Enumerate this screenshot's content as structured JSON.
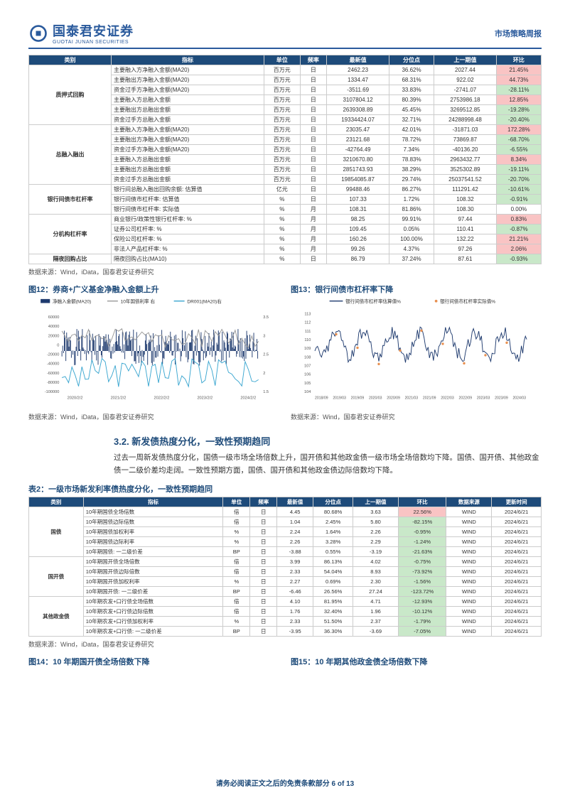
{
  "header": {
    "logo_cn": "国泰君安证券",
    "logo_en": "GUOTAI JUNAN SECURITIES",
    "report": "市场策略周报"
  },
  "table1": {
    "cols": [
      "类别",
      "指标",
      "单位",
      "频率",
      "最新值",
      "分位点",
      "上一期值",
      "环比"
    ],
    "groups": [
      {
        "name": "质押式回购",
        "rows": [
          [
            "主要融入方净融入金额(MA20)",
            "百万元",
            "日",
            "2462.23",
            "36.62%",
            "2027.44",
            "21.45%",
            "pos"
          ],
          [
            "主要融出方净融入金额(MA20)",
            "百万元",
            "日",
            "1334.47",
            "68.31%",
            "922.02",
            "44.73%",
            "pos"
          ],
          [
            "资金过手方净融入金额(MA20)",
            "百万元",
            "日",
            "-3511.69",
            "33.83%",
            "-2741.07",
            "-28.11%",
            "neg"
          ],
          [
            "主要融入方总融入金额",
            "百万元",
            "日",
            "3107804.12",
            "80.39%",
            "2753986.18",
            "12.85%",
            "pos"
          ],
          [
            "主要融出方总融出金额",
            "百万元",
            "日",
            "2639308.89",
            "45.45%",
            "3269512.85",
            "-19.28%",
            "neg"
          ],
          [
            "资金过手方总融入金额",
            "百万元",
            "日",
            "19334424.07",
            "32.71%",
            "24288998.48",
            "-20.40%",
            "neg"
          ]
        ]
      },
      {
        "name": "总融入融出",
        "rows": [
          [
            "主要融入方净融入金额(MA20)",
            "百万元",
            "日",
            "23035.47",
            "42.01%",
            "-31871.03",
            "172.28%",
            "pos"
          ],
          [
            "主要融出方净融入金额(MA20)",
            "百万元",
            "日",
            "23121.68",
            "78.72%",
            "73869.87",
            "-68.70%",
            "neg"
          ],
          [
            "资金过手方净融入金额(MA20)",
            "百万元",
            "日",
            "-42764.49",
            "7.34%",
            "-40136.20",
            "-6.55%",
            "neg"
          ],
          [
            "主要融入方总融出金额",
            "百万元",
            "日",
            "3210670.80",
            "78.83%",
            "2963432.77",
            "8.34%",
            "pos"
          ],
          [
            "主要融出方总融出金额",
            "百万元",
            "日",
            "2851743.93",
            "38.29%",
            "3525302.89",
            "-19.11%",
            "neg"
          ],
          [
            "资金过手方总融出金额",
            "百万元",
            "日",
            "19854085.87",
            "29.74%",
            "25037541.52",
            "-20.70%",
            "neg"
          ]
        ]
      },
      {
        "name": "银行间债市杠杆率",
        "rows": [
          [
            "银行间总融入融出回购余额: 估算值",
            "亿元",
            "日",
            "99488.46",
            "86.27%",
            "111291.42",
            "-10.61%",
            "neg"
          ],
          [
            "银行间债市杠杆率: 估算值",
            "%",
            "日",
            "107.33",
            "1.72%",
            "108.32",
            "-0.91%",
            "neg"
          ],
          [
            "银行间债市杠杆率: 实际值",
            "%",
            "月",
            "108.31",
            "81.86%",
            "108.30",
            "0.00%",
            ""
          ]
        ]
      },
      {
        "name": "分机构杠杆率",
        "rows": [
          [
            "商业银行/政策性银行杠杆率: %",
            "%",
            "月",
            "98.25",
            "99.91%",
            "97.44",
            "0.83%",
            "pos"
          ],
          [
            "证券公司杠杆率: %",
            "%",
            "月",
            "109.45",
            "0.05%",
            "110.41",
            "-0.87%",
            "neg"
          ],
          [
            "保险公司杠杆率: %",
            "%",
            "月",
            "160.26",
            "100.00%",
            "132.22",
            "21.21%",
            "pos"
          ],
          [
            "非法人产品杠杆率: %",
            "%",
            "月",
            "99.26",
            "4.37%",
            "97.26",
            "2.06%",
            "pos"
          ]
        ]
      },
      {
        "name": "隔夜回购占比",
        "rows": [
          [
            "隔夜回购占比(MA10)",
            "%",
            "日",
            "86.79",
            "37.24%",
            "87.61",
            "-0.93%",
            "neg"
          ]
        ]
      }
    ]
  },
  "src1": "数据来源：Wind，iData，国泰君安证券研究",
  "fig12": "图12：券商+广义基金净融入金额上升",
  "fig13": "图13：银行间债市杠杆率下降",
  "fig12_legend": [
    "净融入金额(MA20)",
    "10年国债利率 右",
    "DR001(MA20)右"
  ],
  "fig13_legend": [
    "银行间债市杠杆率估算值%",
    "银行间债市杠杆率实际值%"
  ],
  "fig12_xlabels": [
    "2020/2/2",
    "2021/2/2",
    "2022/2/2",
    "2023/2/2",
    "2024/2/2"
  ],
  "fig12_yleft": [
    -100000,
    -80000,
    -60000,
    -40000,
    -20000,
    0,
    20000,
    40000,
    60000
  ],
  "fig12_yright": [
    1.5,
    2,
    2.5,
    3,
    3.5
  ],
  "fig13_xlabels": [
    "2018/09",
    "2019/03",
    "2019/09",
    "2020/03",
    "2020/09",
    "2021/03",
    "2021/09",
    "2022/03",
    "2022/09",
    "2023/03",
    "2023/09",
    "2024/03"
  ],
  "fig13_y": [
    104,
    105,
    106,
    107,
    108,
    109,
    110,
    111,
    112,
    113
  ],
  "src12": "数据来源：Wind，iData，国泰君安证券研究",
  "src13": "数据来源：Wind，国泰君安证券研究",
  "section": "3.2. 新发债热度分化，一致性预期趋同",
  "body": "过去一周新发债热度分化，国债一级市场全场倍数上升，国开债和其他政金债一级市场全场倍数均下降。国债、国开债、其他政金债一二级价差均走阔。一致性预期方面，国债、国开债和其他政金债边际倍数均下降。",
  "tbl2_title": "表2：一级市场新发利率债热度分化，一致性预期趋同",
  "table2": {
    "cols": [
      "类别",
      "指标",
      "单位",
      "频率",
      "最新值",
      "分位点",
      "上一期值",
      "环比",
      "数据来源",
      "更新时间"
    ],
    "groups": [
      {
        "name": "国债",
        "rows": [
          [
            "10年期国债全场倍数",
            "倍",
            "日",
            "4.45",
            "80.68%",
            "3.63",
            "22.56%",
            "pos",
            "WIND",
            "2024/6/21"
          ],
          [
            "10年期国债边际倍数",
            "倍",
            "日",
            "1.04",
            "2.45%",
            "5.80",
            "-82.15%",
            "neg",
            "WIND",
            "2024/6/21"
          ],
          [
            "10年期国债加权利率",
            "%",
            "日",
            "2.24",
            "1.64%",
            "2.26",
            "-0.95%",
            "neg",
            "WIND",
            "2024/6/21"
          ],
          [
            "10年期国债边际利率",
            "%",
            "日",
            "2.26",
            "3.28%",
            "2.29",
            "-1.24%",
            "neg",
            "WIND",
            "2024/6/21"
          ],
          [
            "10年期国债: 一二级价差",
            "BP",
            "日",
            "-3.88",
            "0.55%",
            "-3.19",
            "-21.63%",
            "neg",
            "WIND",
            "2024/6/21"
          ]
        ]
      },
      {
        "name": "国开债",
        "rows": [
          [
            "10年期国开债全场倍数",
            "倍",
            "日",
            "3.99",
            "86.13%",
            "4.02",
            "-0.75%",
            "neg",
            "WIND",
            "2024/6/21"
          ],
          [
            "10年期国开债边际倍数",
            "倍",
            "日",
            "2.33",
            "54.04%",
            "8.93",
            "-73.92%",
            "neg",
            "WIND",
            "2024/6/21"
          ],
          [
            "10年期国开债加权利率",
            "%",
            "日",
            "2.27",
            "0.69%",
            "2.30",
            "-1.56%",
            "neg",
            "WIND",
            "2024/6/21"
          ],
          [
            "10年期国开债: 一二级价差",
            "BP",
            "日",
            "-6.46",
            "26.56%",
            "27.24",
            "-123.72%",
            "neg",
            "WIND",
            "2024/6/21"
          ]
        ]
      },
      {
        "name": "其他政金债",
        "rows": [
          [
            "10年期农发+口行债全场倍数",
            "倍",
            "日",
            "4.10",
            "81.95%",
            "4.71",
            "-12.93%",
            "neg",
            "WIND",
            "2024/6/21"
          ],
          [
            "10年期农发+口行债边际倍数",
            "倍",
            "日",
            "1.76",
            "32.40%",
            "1.96",
            "-10.12%",
            "neg",
            "WIND",
            "2024/6/21"
          ],
          [
            "10年期农发+口行债加权利率",
            "%",
            "日",
            "2.33",
            "51.50%",
            "2.37",
            "-1.79%",
            "neg",
            "WIND",
            "2024/6/21"
          ],
          [
            "10年期农发+口行债: 一二级价差",
            "BP",
            "日",
            "-3.95",
            "36.30%",
            "-3.69",
            "-7.05%",
            "neg",
            "WIND",
            "2024/6/21"
          ]
        ]
      }
    ]
  },
  "src2": "数据来源：Wind，iData，国泰君安证券研究",
  "fig14": "图14：10 年期国开债全场倍数下降",
  "fig15": "图15：10 年期其他政金债全场倍数下降",
  "footer": "请务必阅读正文之后的免责条款部分 6 of 13"
}
